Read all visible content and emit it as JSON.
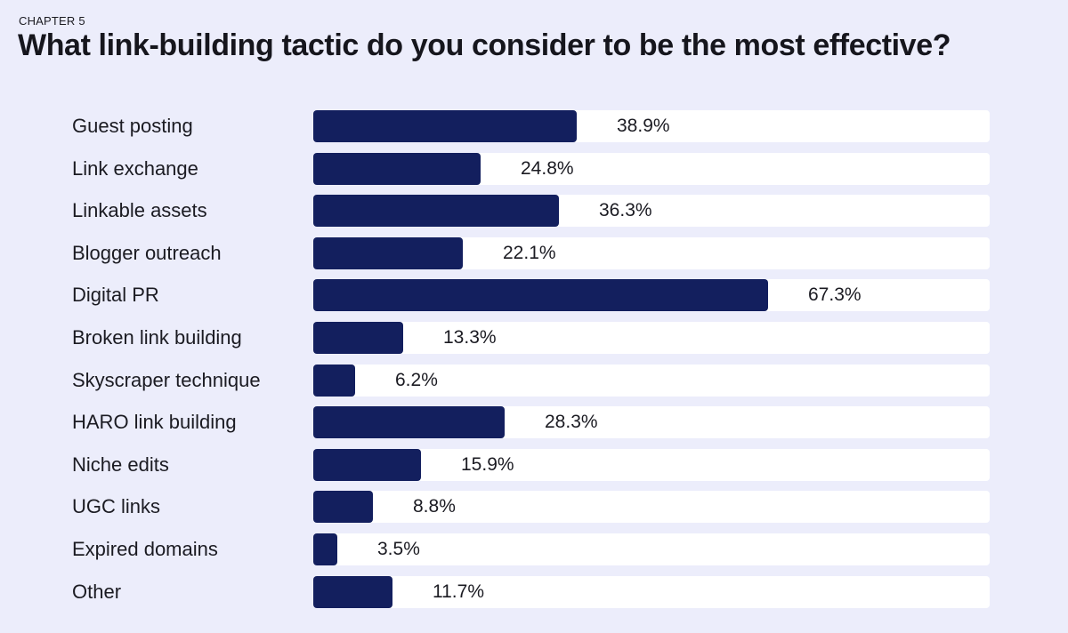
{
  "header": {
    "chapter": "CHAPTER 5",
    "title": "What link-building tactic do you consider to be the most effective?"
  },
  "colors": {
    "background": "#ecedfb",
    "bar": "#131f5e",
    "track": "#ffffff",
    "text": "#1b1b22"
  },
  "chart_data": {
    "type": "bar",
    "orientation": "horizontal",
    "title": "What link-building tactic do you consider to be the most effective?",
    "xlim": [
      0,
      100
    ],
    "categories": [
      "Guest posting",
      "Link exchange",
      "Linkable assets",
      "Blogger outreach",
      "Digital PR",
      "Broken link building",
      "Skyscraper technique",
      "HARO link building",
      "Niche edits",
      "UGC links",
      "Expired domains",
      "Other"
    ],
    "values": [
      38.9,
      24.8,
      36.3,
      22.1,
      67.3,
      13.3,
      6.2,
      28.3,
      15.9,
      8.8,
      3.5,
      11.7
    ],
    "value_labels": [
      "38.9%",
      "24.8%",
      "36.3%",
      "22.1%",
      "67.3%",
      "13.3%",
      "6.2%",
      "28.3%",
      "15.9%",
      "8.8%",
      "3.5%",
      "11.7%"
    ],
    "grid": false,
    "legend": "none"
  }
}
